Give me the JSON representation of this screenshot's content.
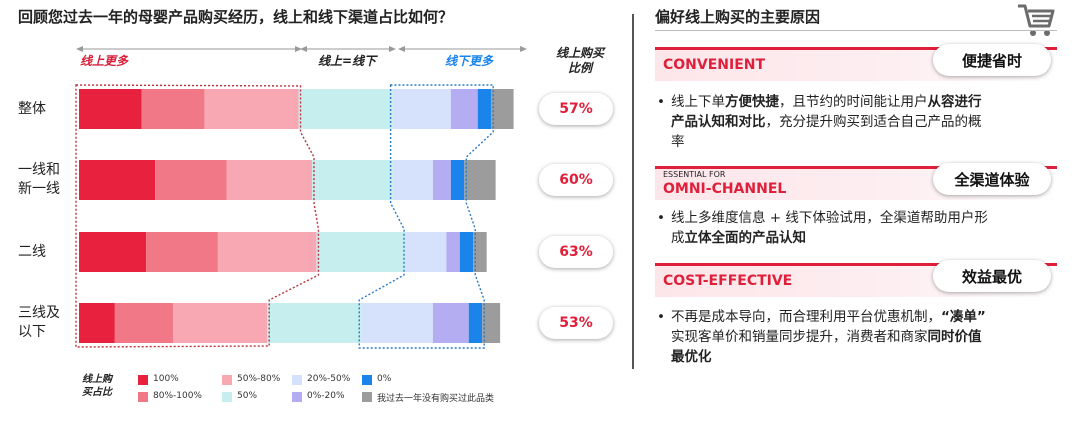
{
  "left": {
    "title": "回顾您过去一年的母婴产品购买经历，线上和线下渠道占比如何？",
    "header_online_more": "线上更多",
    "header_equal": "线上=线下",
    "header_offline_more": "线下更多",
    "header_ratio_line1": "线上购买",
    "header_ratio_line2": "比例"
  },
  "chart_data": {
    "type": "bar",
    "stacked": true,
    "orientation": "horizontal",
    "unit": "%",
    "categories": [
      "整体",
      "一线和\n新一线",
      "二线",
      "三线及\n以下"
    ],
    "category_lines": [
      [
        "整体"
      ],
      [
        "一线和",
        "新一线"
      ],
      [
        "二线"
      ],
      [
        "三线及",
        "以下"
      ]
    ],
    "series": [
      {
        "name": "100%",
        "color": "#e8213f",
        "values": [
          14,
          17,
          15,
          8
        ]
      },
      {
        "name": "80%-100%",
        "color": "#f17886",
        "values": [
          14,
          16,
          16,
          13
        ]
      },
      {
        "name": "50%-80%",
        "color": "#f7a8b3",
        "values": [
          21,
          19,
          22,
          21
        ]
      },
      {
        "name": "50%",
        "color": "#c7eeee",
        "values": [
          21,
          18,
          20,
          21
        ]
      },
      {
        "name": "20%-50%",
        "color": "#d6e2fb",
        "values": [
          13,
          9,
          9,
          16
        ]
      },
      {
        "name": "0%-20%",
        "color": "#b5adf2",
        "values": [
          6,
          4,
          3,
          8
        ]
      },
      {
        "name": "0%",
        "color": "#1b84ea",
        "values": [
          3,
          3,
          3,
          3
        ]
      },
      {
        "name": "我过去一年没有购买过此品类",
        "color": "#9c9c9c",
        "values": [
          5,
          7,
          3,
          4
        ]
      }
    ],
    "online_ratio": [
      "57%",
      "60%",
      "63%",
      "53%"
    ],
    "legend_title_line1": "线上购",
    "legend_title_line2": "买占比",
    "xlim": [
      0,
      100
    ]
  },
  "right": {
    "title": "偏好线上购买的主要原因",
    "cart_icon": "shopping-cart-icon",
    "sections": [
      {
        "en_small": "",
        "en": "CONVENIENT",
        "cn": "便捷省时",
        "text_lines": [
          [
            {
              "t": "线上下单"
            },
            {
              "t": "方便快捷",
              "b": true
            },
            {
              "t": "，且节约的时间能让用户"
            },
            {
              "t": "从容进行",
              "b": true
            }
          ],
          [
            {
              "t": "产品认知和对比",
              "b": true
            },
            {
              "t": "，充分提升购买到适合自己产品的概"
            }
          ],
          [
            {
              "t": "率"
            }
          ]
        ]
      },
      {
        "en_small": "ESSENTIAL FOR",
        "en": "OMNI-CHANNEL",
        "cn": "全渠道体验",
        "text_lines": [
          [
            {
              "t": "线上多维度信息 + 线下体验试用，全渠道帮助用户形"
            }
          ],
          [
            {
              "t": "成"
            },
            {
              "t": "立体全面的产品认知",
              "b": true
            }
          ]
        ]
      },
      {
        "en_small": "",
        "en": "COST-EFFECTIVE",
        "cn": "效益最优",
        "text_lines": [
          [
            {
              "t": "不再是成本导向，而合理利用平台优惠机制，"
            },
            {
              "t": "“凑单”",
              "b": true
            }
          ],
          [
            {
              "t": "实现客单价和销量同步提升，消费者和商家"
            },
            {
              "t": "同时价值",
              "b": true
            }
          ],
          [
            {
              "t": "最优化",
              "b": true
            }
          ]
        ]
      }
    ]
  },
  "colors": {
    "accent": "#e0203b",
    "offline_accent": "#1b84ea"
  }
}
